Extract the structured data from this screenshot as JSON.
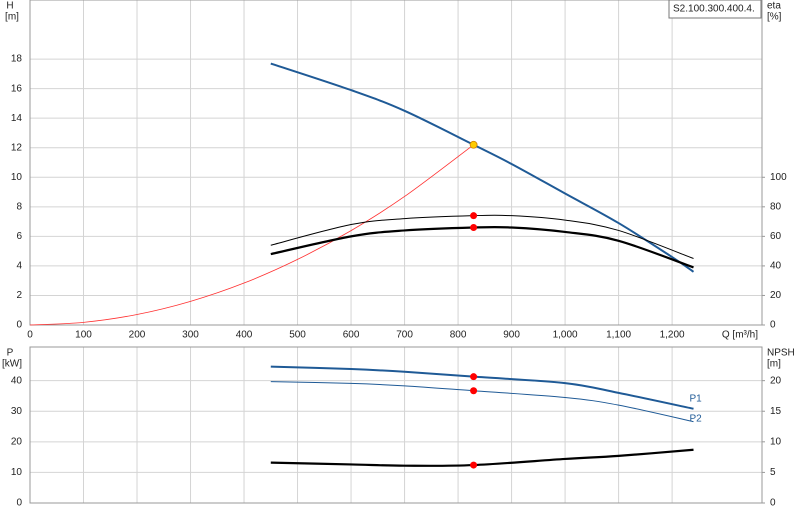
{
  "chart_data": [
    {
      "type": "line",
      "title": "S2.100.300.400.4.",
      "ylabel": "H",
      "yunit": "[m]",
      "y2label": "eta",
      "y2unit": "[%]",
      "xlabel": "Q [m³/h]",
      "xlim": [
        0,
        1368
      ],
      "xticks": [
        0,
        100,
        200,
        300,
        400,
        500,
        600,
        700,
        800,
        900,
        {
          "value": 1000,
          "label": "1,000"
        },
        {
          "value": 1100,
          "label": "1,100"
        },
        {
          "value": 1200,
          "label": "1,200"
        }
      ],
      "show_xtick_labels": true,
      "ylim": [
        0,
        22
      ],
      "yticks": [
        0,
        2,
        4,
        6,
        8,
        10,
        12,
        14,
        16,
        18
      ],
      "y2lim": [
        0,
        220
      ],
      "y2ticks": [
        0,
        20,
        40,
        60,
        80,
        100
      ],
      "grid": true,
      "series": [
        {
          "color": "#1f5a96",
          "width": 2,
          "x": [
            450,
            600,
            700,
            829,
            900,
            1000,
            1100,
            1200,
            1240
          ],
          "values": [
            17.7,
            15.9,
            14.5,
            12.2,
            10.9,
            8.9,
            6.9,
            4.6,
            3.6
          ]
        },
        {
          "color": "#ff3030",
          "width": 0.8,
          "x": [
            0,
            100,
            200,
            300,
            400,
            500,
            600,
            700,
            829
          ],
          "values": [
            0,
            0.18,
            0.71,
            1.6,
            2.84,
            4.44,
            6.39,
            8.7,
            12.2
          ]
        },
        {
          "color": "#000000",
          "width": 1,
          "axis": "y2",
          "x": [
            450,
            600,
            700,
            829,
            900,
            1000,
            1100,
            1240
          ],
          "values": [
            54,
            68,
            72,
            74,
            74,
            71,
            64,
            45
          ]
        },
        {
          "color": "#000000",
          "width": 2.2,
          "axis": "y2",
          "x": [
            450,
            600,
            700,
            829,
            900,
            1000,
            1100,
            1240
          ],
          "values": [
            48,
            60,
            64,
            66,
            66,
            63,
            57,
            39
          ]
        }
      ],
      "markers": [
        {
          "x": 829,
          "value": 12.2,
          "color": "#ffcc00"
        },
        {
          "x": 829,
          "value": 74,
          "color": "#ff0000",
          "axis": "y2"
        },
        {
          "x": 829,
          "value": 66,
          "color": "#ff0000",
          "axis": "y2"
        }
      ]
    },
    {
      "type": "line",
      "ylabel": "P",
      "yunit": "[kW]",
      "y2label": "NPSH",
      "y2unit": "[m]",
      "xlim": [
        0,
        1368
      ],
      "xticks": [
        0,
        100,
        200,
        300,
        400,
        500,
        600,
        700,
        800,
        900,
        1000,
        1100,
        1200
      ],
      "show_xtick_labels": false,
      "ylim": [
        0,
        51
      ],
      "yticks": [
        0,
        10,
        20,
        30,
        40
      ],
      "y2lim": [
        0,
        25.5
      ],
      "y2ticks": [
        0,
        5,
        10,
        15,
        20
      ],
      "grid": true,
      "series": [
        {
          "name": "P1",
          "color": "#1f5a96",
          "width": 2,
          "x": [
            450,
            600,
            700,
            829,
            1000,
            1100,
            1240
          ],
          "values": [
            44.6,
            43.8,
            42.9,
            41.3,
            39.2,
            36,
            30.8
          ]
        },
        {
          "name": "P2",
          "color": "#1f5a96",
          "width": 1,
          "x": [
            450,
            600,
            700,
            829,
            1000,
            1100,
            1240
          ],
          "values": [
            39.7,
            39.1,
            38.3,
            36.7,
            34.5,
            32,
            26.6
          ]
        },
        {
          "color": "#000000",
          "width": 2.2,
          "axis": "y2",
          "x": [
            450,
            600,
            700,
            829,
            1000,
            1100,
            1240
          ],
          "values": [
            6.6,
            6.3,
            6.1,
            6.2,
            7.2,
            7.7,
            8.7
          ]
        }
      ],
      "markers": [
        {
          "x": 829,
          "value": 41.3,
          "color": "#ff0000"
        },
        {
          "x": 829,
          "value": 36.7,
          "color": "#ff0000"
        },
        {
          "x": 829,
          "value": 6.2,
          "color": "#ff0000",
          "axis": "y2"
        }
      ]
    }
  ]
}
